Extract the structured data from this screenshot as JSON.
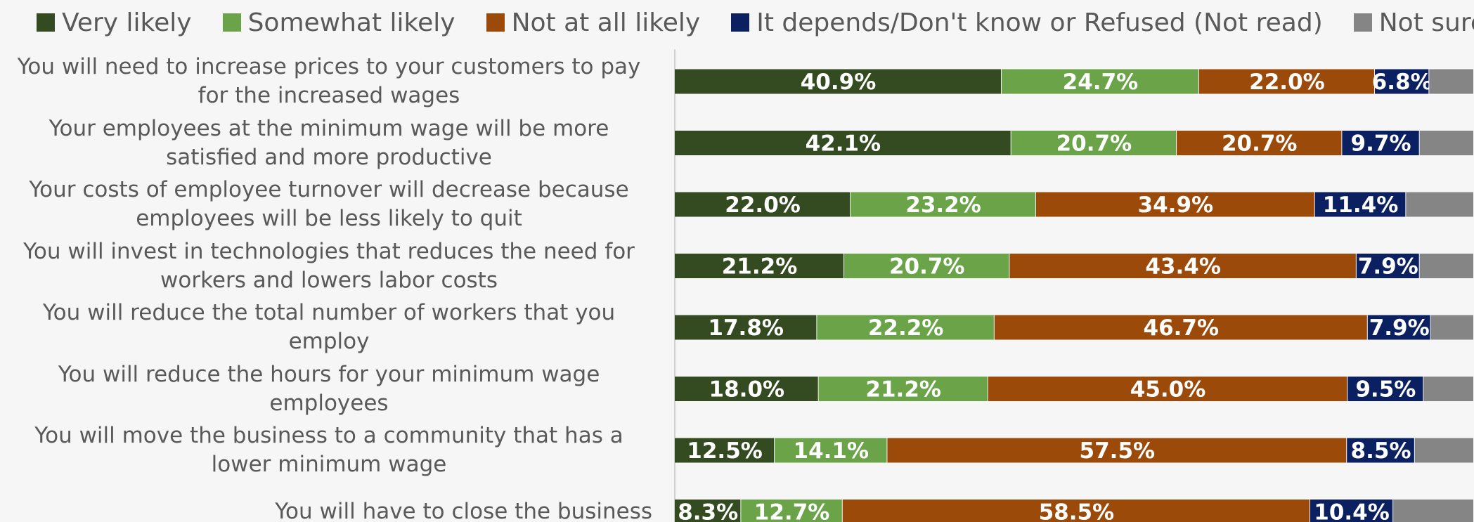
{
  "chart_data": {
    "type": "stacked-bar-horizontal",
    "categories": [
      "You will need to increase prices to your customers to pay for the increased wages",
      "Your employees at the minimum wage will be more satisfied and more productive",
      "Your costs of employee turnover will decrease because employees will be less likely to quit",
      "You will invest in technologies that reduces the need for workers and lowers labor costs",
      "You will reduce the total number of workers that you employ",
      "You will reduce the hours for your minimum wage employees",
      "You will move the business to a community that has a lower minimum wage",
      "You will have to close the business"
    ],
    "series": [
      {
        "name": "Very likely",
        "color": "#344b22",
        "values": [
          40.9,
          42.1,
          22.0,
          21.2,
          17.8,
          18.0,
          12.5,
          8.3
        ],
        "value_labels": [
          "40.9%",
          "42.1%",
          "22.0%",
          "21.2%",
          "17.8%",
          "18.0%",
          "12.5%",
          "8.3%"
        ]
      },
      {
        "name": "Somewhat likely",
        "color": "#6aa348",
        "values": [
          24.7,
          20.7,
          23.2,
          20.7,
          22.2,
          21.2,
          14.1,
          12.7
        ],
        "value_labels": [
          "24.7%",
          "20.7%",
          "23.2%",
          "20.7%",
          "22.2%",
          "21.2%",
          "14.1%",
          "12.7%"
        ]
      },
      {
        "name": "Not at all likely",
        "color": "#9c4a0a",
        "values": [
          22.0,
          20.7,
          34.9,
          43.4,
          46.7,
          45.0,
          57.5,
          58.5
        ],
        "value_labels": [
          "22.0%",
          "20.7%",
          "34.9%",
          "43.4%",
          "46.7%",
          "45.0%",
          "57.5%",
          "58.5%"
        ]
      },
      {
        "name": "It depends/Don't know or Refused (Not read)",
        "color": "#0b2060",
        "values": [
          6.8,
          9.7,
          11.4,
          7.9,
          7.9,
          9.5,
          8.5,
          10.4
        ],
        "value_labels": [
          "6.8%",
          "9.7%",
          "11.4%",
          "7.9%",
          "7.9%",
          "9.5%",
          "8.5%",
          "10.4%"
        ]
      },
      {
        "name": "Not sure",
        "color": "#858585",
        "values": [
          5.6,
          6.8,
          8.5,
          6.8,
          5.4,
          6.3,
          7.4,
          10.1
        ]
      }
    ],
    "xlim": [
      0,
      100
    ]
  }
}
